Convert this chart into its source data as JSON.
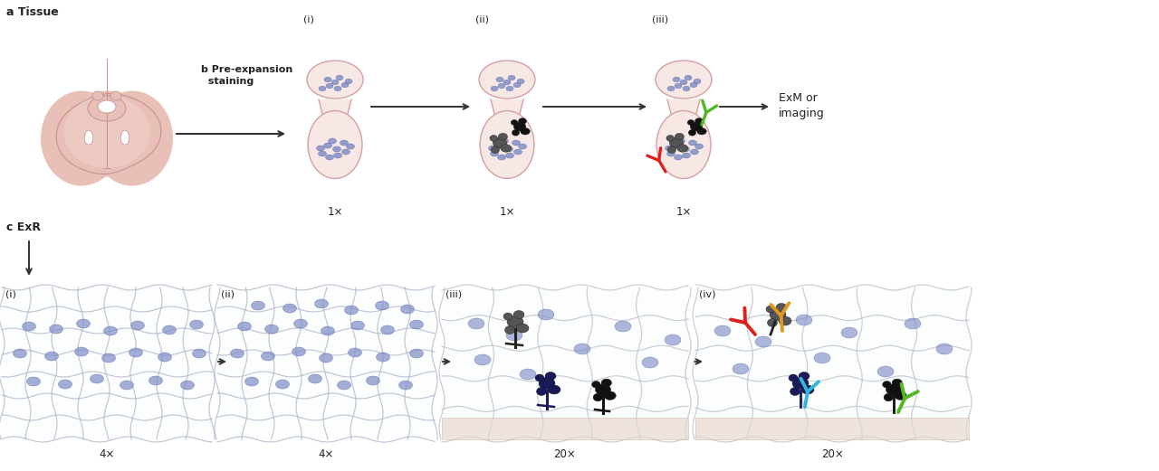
{
  "bg_color": "#ffffff",
  "brain_fill": "#e8c0b8",
  "brain_inner": "#f0d0c8",
  "brain_outline": "#c89090",
  "syn_fill": "#f8e8e5",
  "syn_outline": "#d4a0a0",
  "blue": "#8090c8",
  "blue_edge": "#5060a0",
  "dark_gray": "#555555",
  "mid_gray": "#777777",
  "black_prot": "#111111",
  "navy": "#1a1a5a",
  "red_ab": "#e02020",
  "green_ab": "#50b820",
  "yellow_ab": "#e09820",
  "cyan_ab": "#30b8d8",
  "gel_bg": "#f0f2f8",
  "gel_line_dense": "#aab0c5",
  "gel_line_sparse": "#b8bccc",
  "skin_fill": "#e8d8cc",
  "skin_edge": "#c8b0a0",
  "arrow": "#333333",
  "text": "#222222",
  "label_a": "a Tissue",
  "label_b": "b Pre-expansion\n  staining",
  "label_c": "c ExR",
  "top_roman": [
    "(i)",
    "(ii)",
    "(iii)"
  ],
  "top_scale": [
    "1×",
    "1×",
    "1×"
  ],
  "bot_roman": [
    "(i)",
    "(ii)",
    "(iii)",
    "(iv)"
  ],
  "bot_scale": [
    "4×",
    "4×",
    "20×",
    "20×"
  ],
  "exm": "ExM or\nimaging"
}
